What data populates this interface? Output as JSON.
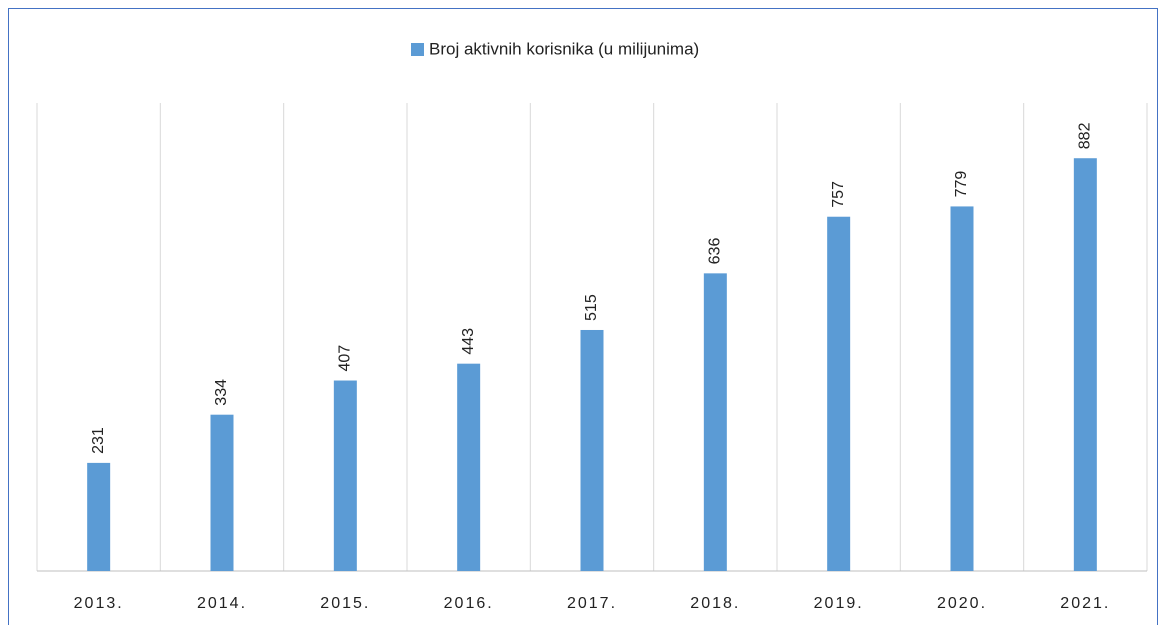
{
  "chart_data": {
    "type": "bar",
    "categories": [
      "2013.",
      "2014.",
      "2015.",
      "2016.",
      "2017.",
      "2018.",
      "2019.",
      "2020.",
      "2021."
    ],
    "series": [
      {
        "name": "Broj aktivnih korisnika (u milijunima)",
        "color": "#5b9bd5",
        "values": [
          231,
          334,
          407,
          443,
          515,
          636,
          757,
          779,
          882
        ]
      }
    ],
    "ylim": [
      0,
      1000
    ],
    "grid": true
  }
}
